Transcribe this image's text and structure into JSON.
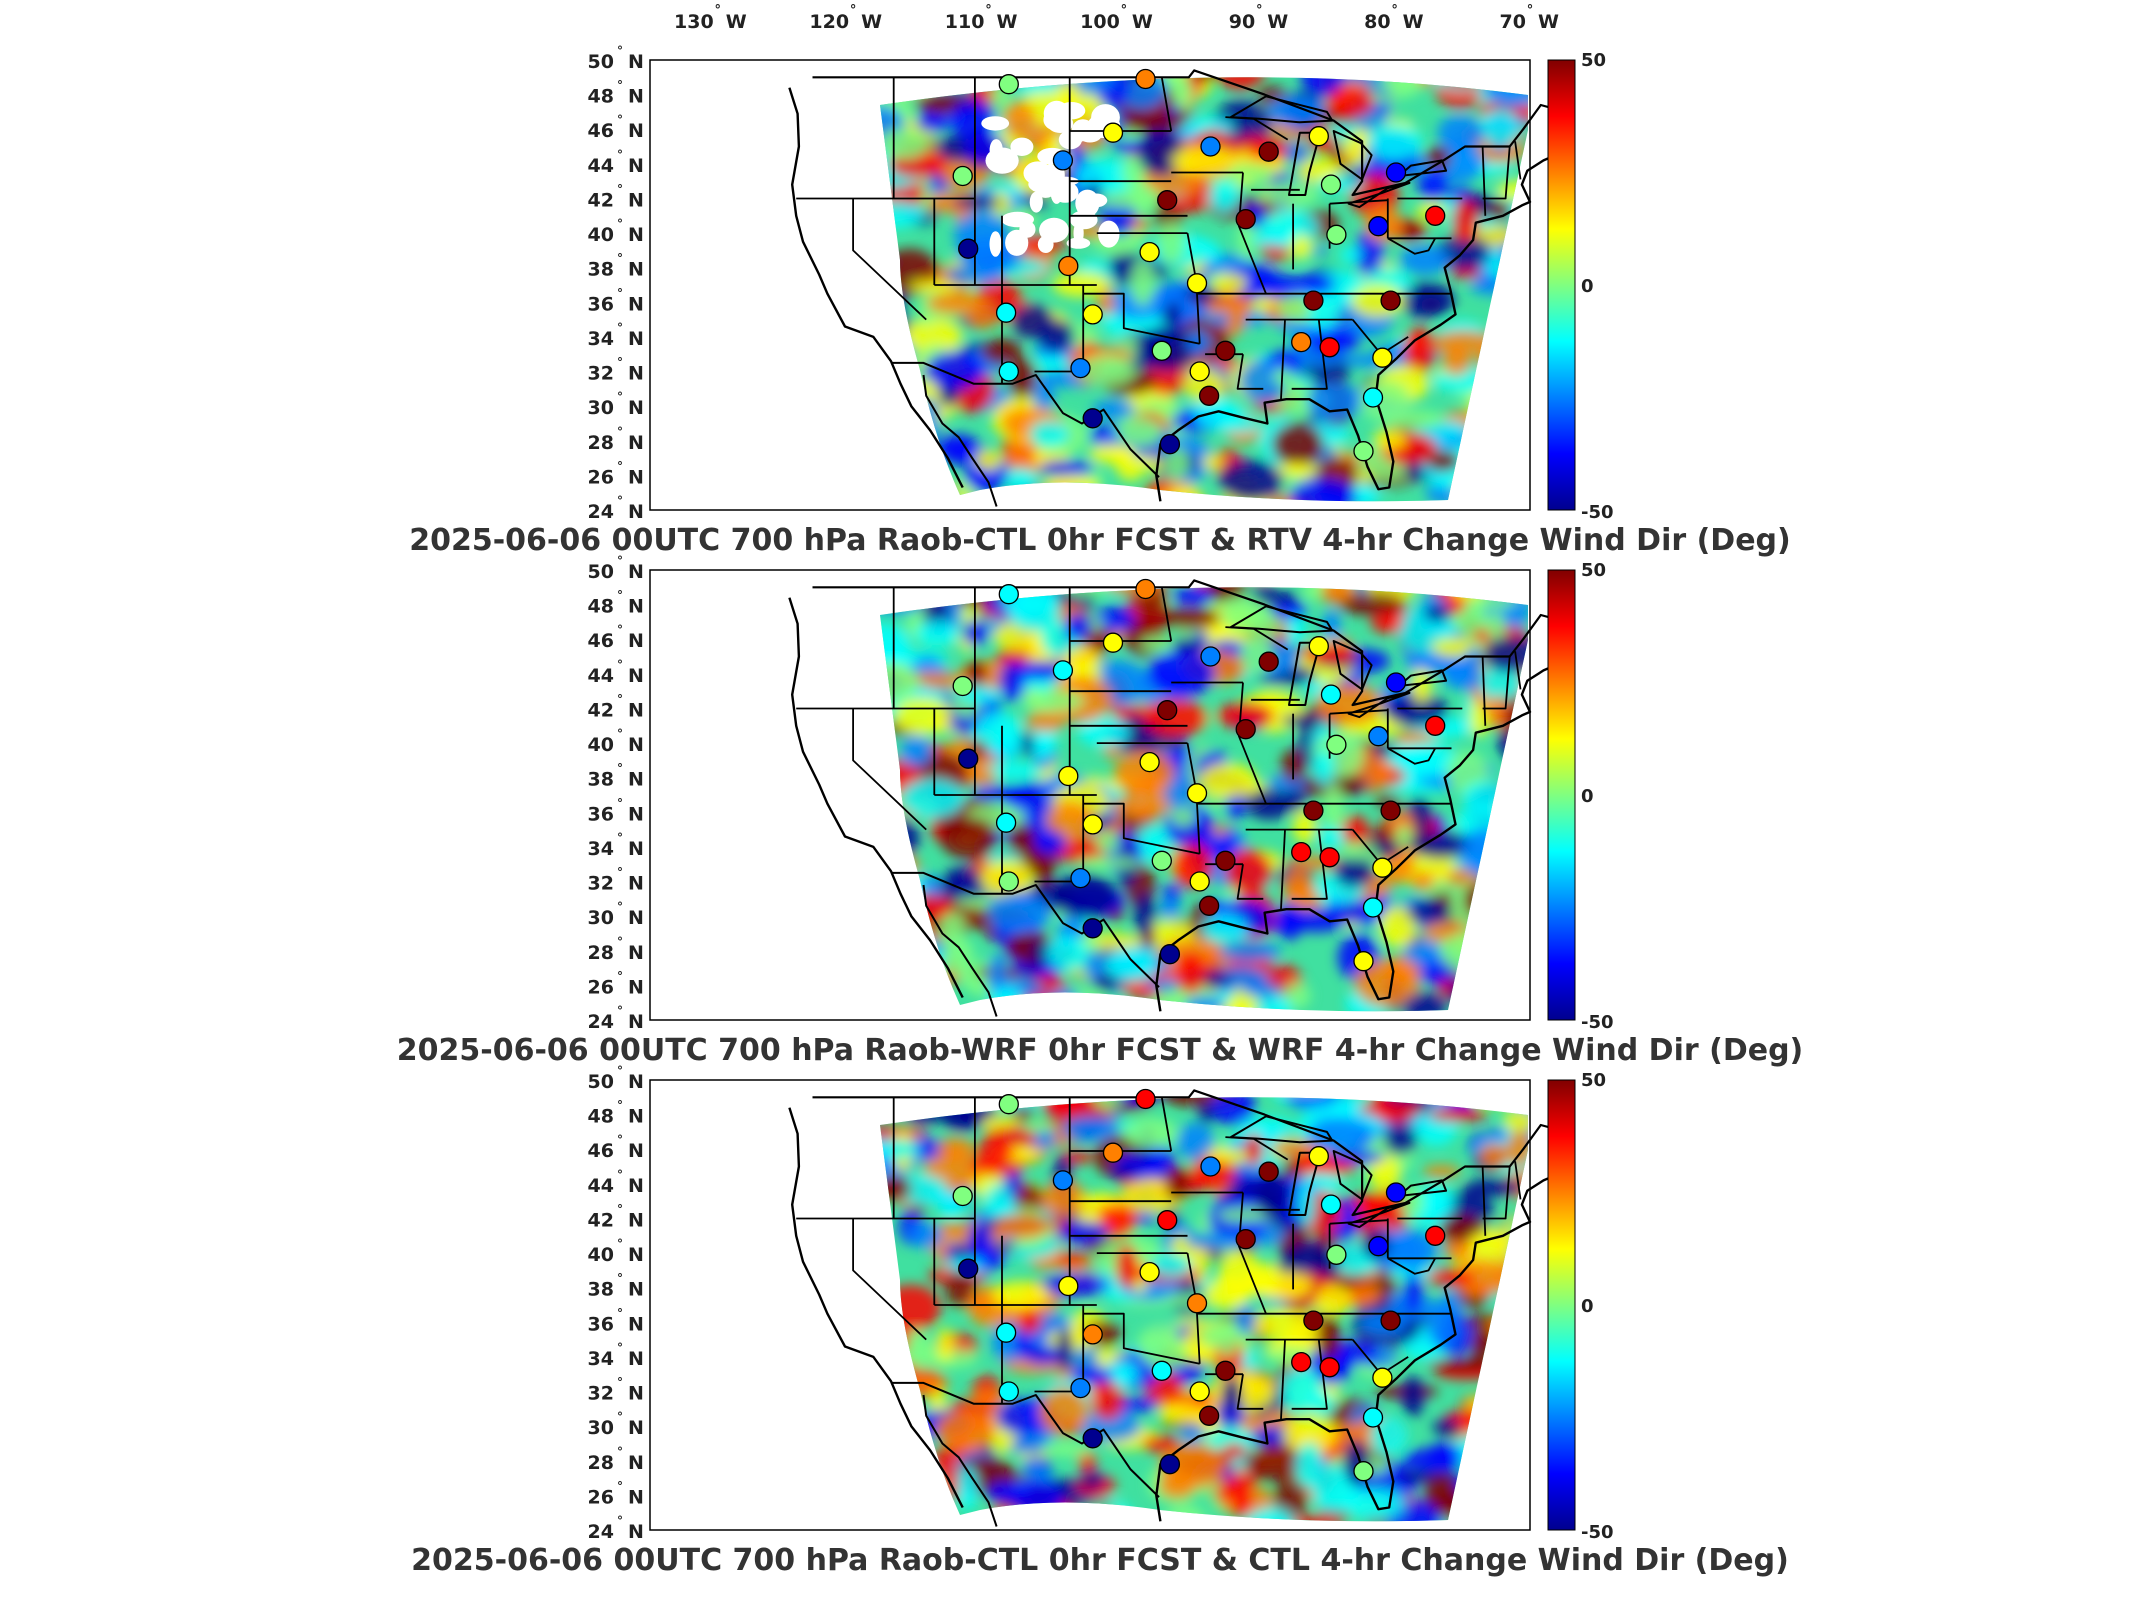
{
  "lon_labels": [
    {
      "value": "130",
      "hemi": "W"
    },
    {
      "value": "120",
      "hemi": "W"
    },
    {
      "value": "110",
      "hemi": "W"
    },
    {
      "value": "100",
      "hemi": "W"
    },
    {
      "value": "90",
      "hemi": "W"
    },
    {
      "value": "80",
      "hemi": "W"
    },
    {
      "value": "70",
      "hemi": "W"
    }
  ],
  "lat_labels": [
    {
      "value": "50",
      "hemi": "N"
    },
    {
      "value": "48",
      "hemi": "N"
    },
    {
      "value": "46",
      "hemi": "N"
    },
    {
      "value": "44",
      "hemi": "N"
    },
    {
      "value": "42",
      "hemi": "N"
    },
    {
      "value": "40",
      "hemi": "N"
    },
    {
      "value": "38",
      "hemi": "N"
    },
    {
      "value": "36",
      "hemi": "N"
    },
    {
      "value": "34",
      "hemi": "N"
    },
    {
      "value": "32",
      "hemi": "N"
    },
    {
      "value": "30",
      "hemi": "N"
    },
    {
      "value": "28",
      "hemi": "N"
    },
    {
      "value": "26",
      "hemi": "N"
    },
    {
      "value": "24",
      "hemi": "N"
    }
  ],
  "colorbar": {
    "max_label": "50",
    "mid_label": "0",
    "min_label": "-50",
    "colors": [
      "#00008f",
      "#0000ff",
      "#0080ff",
      "#00ffff",
      "#80ff80",
      "#ffff00",
      "#ff8000",
      "#ff0000",
      "#800000"
    ]
  },
  "panels": [
    {
      "title": "2025-06-06 00UTC 700 hPa Raob-CTL 0hr FCST & RTV 4-hr Change Wind Dir (Deg)"
    },
    {
      "title": "2025-06-06 00UTC 700 hPa Raob-WRF 0hr FCST & WRF 4-hr Change Wind Dir (Deg)"
    },
    {
      "title": "2025-06-06 00UTC 700 hPa Raob-CTL 0hr FCST & CTL 4-hr Change Wind Dir (Deg)"
    }
  ],
  "stations": [
    {
      "lon": -108.5,
      "lat": 48.6,
      "v": -5
    },
    {
      "lon": -98.4,
      "lat": 48.9,
      "v": 30
    },
    {
      "lon": -104.5,
      "lat": 44.2,
      "v": -20
    },
    {
      "lon": -111.9,
      "lat": 43.3,
      "v": 5
    },
    {
      "lon": -100.8,
      "lat": 45.8,
      "v": 15
    },
    {
      "lon": -93.6,
      "lat": 45.0,
      "v": -25
    },
    {
      "lon": -89.3,
      "lat": 44.7,
      "v": 50
    },
    {
      "lon": -85.6,
      "lat": 45.6,
      "v": 10
    },
    {
      "lon": -84.7,
      "lat": 42.8,
      "v": -5
    },
    {
      "lon": -79.9,
      "lat": 43.5,
      "v": -40
    },
    {
      "lon": -96.8,
      "lat": 41.9,
      "v": 45
    },
    {
      "lon": -91.0,
      "lat": 40.8,
      "v": 50
    },
    {
      "lon": -84.3,
      "lat": 39.9,
      "v": 0
    },
    {
      "lon": -81.2,
      "lat": 40.4,
      "v": -35
    },
    {
      "lon": -77.0,
      "lat": 41.0,
      "v": 40
    },
    {
      "lon": -111.5,
      "lat": 39.1,
      "v": -48
    },
    {
      "lon": -104.1,
      "lat": 38.1,
      "v": 20
    },
    {
      "lon": -98.1,
      "lat": 38.9,
      "v": 15
    },
    {
      "lon": -94.6,
      "lat": 37.1,
      "v": 15
    },
    {
      "lon": -108.7,
      "lat": 35.4,
      "v": -10
    },
    {
      "lon": -102.3,
      "lat": 35.3,
      "v": 18
    },
    {
      "lon": -97.2,
      "lat": 33.2,
      "v": -5
    },
    {
      "lon": -92.5,
      "lat": 33.2,
      "v": 50
    },
    {
      "lon": -94.4,
      "lat": 32.0,
      "v": 15
    },
    {
      "lon": -108.5,
      "lat": 32.0,
      "v": -8
    },
    {
      "lon": -103.2,
      "lat": 32.2,
      "v": -25
    },
    {
      "lon": -86.9,
      "lat": 33.7,
      "v": 30
    },
    {
      "lon": -84.8,
      "lat": 33.4,
      "v": 40
    },
    {
      "lon": -80.9,
      "lat": 32.8,
      "v": 10
    },
    {
      "lon": -86.0,
      "lat": 36.1,
      "v": 50
    },
    {
      "lon": -80.3,
      "lat": 36.1,
      "v": 50
    },
    {
      "lon": -81.6,
      "lat": 30.5,
      "v": -15
    },
    {
      "lon": -82.3,
      "lat": 27.4,
      "v": 5
    },
    {
      "lon": -93.7,
      "lat": 30.6,
      "v": 50
    },
    {
      "lon": -96.6,
      "lat": 27.8,
      "v": -48
    },
    {
      "lon": -102.3,
      "lat": 29.3,
      "v": -50
    }
  ]
}
